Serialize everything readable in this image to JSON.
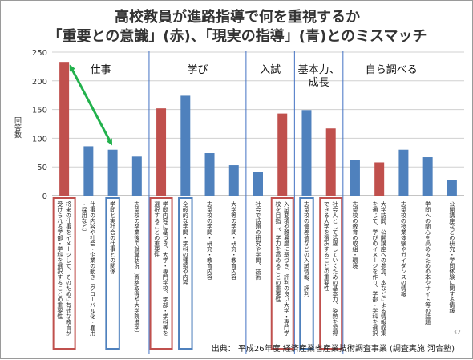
{
  "header": {
    "title_line1": "高校教員が進路指導で何を重視するか",
    "title_line2": "「重要との意識」(赤)、「現実の指導」(青)とのミスマッチ"
  },
  "footer": {
    "source": "出典： 平成26年度 経済産業省産業技術調査事業 (調査実施 河合塾)",
    "page_number": "32"
  },
  "colors": {
    "red": "#c0504d",
    "blue": "#4f81bd",
    "arrow": "#22b14c",
    "divider": "#4472c4"
  },
  "chart_data": {
    "type": "bar",
    "ylabel": "回答数",
    "ylim": [
      0,
      250
    ],
    "yticks": [
      0,
      50,
      100,
      150,
      200,
      250
    ],
    "grid": true,
    "groups": [
      {
        "label": "仕事",
        "span": [
          0,
          3
        ]
      },
      {
        "label": "学び",
        "span": [
          4,
          7
        ]
      },
      {
        "label": "入試",
        "span": [
          8,
          9
        ]
      },
      {
        "label": "基本力、\n成長",
        "span": [
          10,
          11
        ]
      },
      {
        "label": "自ら調べる",
        "span": [
          12,
          15
        ]
      }
    ],
    "categories": [
      "将来の仕事をイメージして、そのために有効な教育が受けられる学部・学科を選択することの重要性",
      "仕事の内容や社会・企業の動き（グローバル化・雇用・採用など）",
      "学問と実社会の仕事との関係",
      "志望校の卒業後の就職状況（資格取得や大学院進学）",
      "学問内容に基づき、大学・専門学校、学部・学科等を選択することの重要性",
      "全般的な学問・学科の種類や内容",
      "志望校の学問・研究・教育内容",
      "大学等の学問・研究・教育内容",
      "社会で話題の研究や学問、技術",
      "入試要項や難易度に基づき、評判の良い大学・専門学校を目指し、学力を高めることの重要性",
      "志望校の偏差値などの入試情報、評判",
      "社会人として活躍していくための基本力、姿勢を習得できる大学を選択することの重要性",
      "志望校の教育の取組・環境",
      "大学訪問、公開講座への参加、本などによる情報収集を通じて、学びのイメージを作り、学部・学科を選択",
      "志望校の授業体験やガイダンスの情報",
      "学問への関心を高めるための本やサイト等の話題",
      "公開講座などの研究・学問体験に関する情報"
    ],
    "values": [
      233,
      86,
      80,
      68,
      152,
      174,
      74,
      53,
      41,
      143,
      149,
      117,
      62,
      58,
      80,
      67,
      27
    ],
    "bar_colors": [
      "red",
      "blue",
      "blue",
      "blue",
      "red",
      "blue",
      "blue",
      "blue",
      "blue",
      "red",
      "blue",
      "red",
      "blue",
      "red",
      "blue",
      "blue",
      "blue"
    ],
    "boxed": [
      {
        "index": 0,
        "color": "red"
      },
      {
        "index": 2,
        "color": "blue"
      },
      {
        "index": 4,
        "color": "red"
      },
      {
        "index": 5,
        "color": "blue"
      },
      {
        "index": 9,
        "color": "red"
      },
      {
        "index": 10,
        "color": "blue"
      },
      {
        "index": 11,
        "color": "red"
      }
    ],
    "arrow": {
      "from_index": 0,
      "to_index": 2,
      "style": "double-headed"
    }
  }
}
